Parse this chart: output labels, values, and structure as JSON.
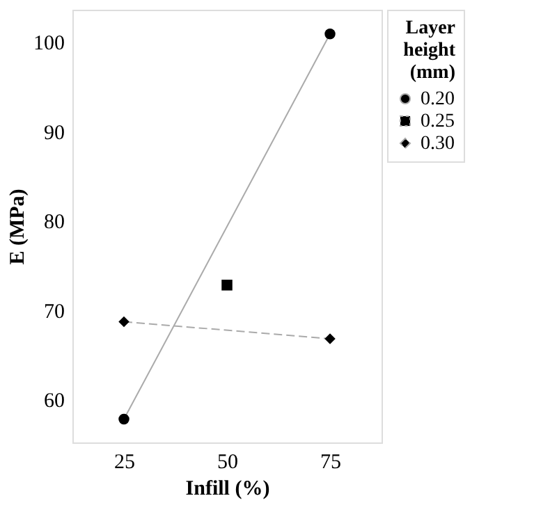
{
  "chart_data": {
    "type": "line",
    "xlabel": "Infill (%)",
    "ylabel": "E (MPa)",
    "legend_title": "Layer height (mm)",
    "xlim": [
      12.5,
      87.5
    ],
    "xticks": [
      25,
      50,
      75
    ],
    "ylim": [
      55.2,
      103.6
    ],
    "yticks": [
      60,
      70,
      80,
      90,
      100
    ],
    "grid": false,
    "legend": "right",
    "series": [
      {
        "name": "0.20",
        "color": "#000000",
        "x": [
          25,
          75
        ],
        "values": [
          57.8,
          100.9
        ],
        "marker": "circle",
        "line_style": "solid"
      },
      {
        "name": "0.25",
        "color": "#000000",
        "x": [
          50
        ],
        "values": [
          72.8
        ],
        "marker": "square",
        "line_style": "dotted"
      },
      {
        "name": "0.30",
        "color": "#000000",
        "x": [
          25,
          75
        ],
        "values": [
          68.7,
          66.8
        ],
        "marker": "diamond",
        "line_style": "dashed"
      }
    ]
  }
}
